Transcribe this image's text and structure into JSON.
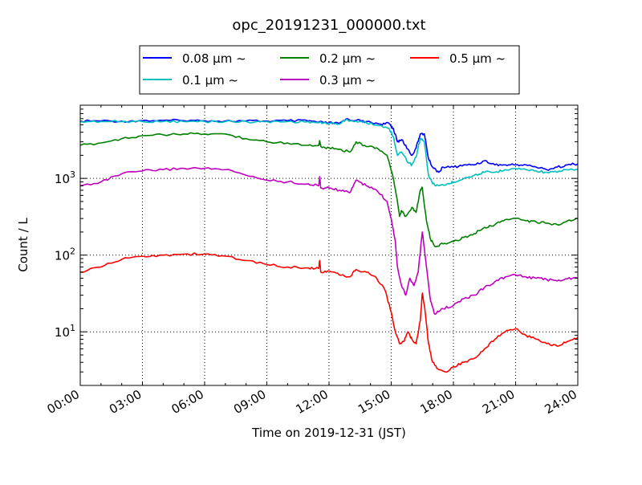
{
  "chart_data": {
    "type": "line",
    "title": "opc_20191231_000000.txt",
    "xlabel": "Time on 2019-12-31 (JST)",
    "ylabel": "Count / L",
    "yscale": "log",
    "xlim": [
      0,
      24
    ],
    "ylim": [
      2,
      9000
    ],
    "grid": true,
    "legend_position": "top-center",
    "x_ticks": [
      {
        "value": 0,
        "label": "00:00"
      },
      {
        "value": 3,
        "label": "03:00"
      },
      {
        "value": 6,
        "label": "06:00"
      },
      {
        "value": 9,
        "label": "09:00"
      },
      {
        "value": 12,
        "label": "12:00"
      },
      {
        "value": 15,
        "label": "15:00"
      },
      {
        "value": 18,
        "label": "18:00"
      },
      {
        "value": 21,
        "label": "21:00"
      },
      {
        "value": 24,
        "label": "24:00"
      }
    ],
    "y_ticks": [
      {
        "value": 10,
        "base": "10",
        "exp": "1"
      },
      {
        "value": 100,
        "base": "10",
        "exp": "2"
      },
      {
        "value": 1000,
        "base": "10",
        "exp": "3"
      }
    ],
    "series": [
      {
        "name": "0.08 μm ~",
        "color": "#0000ff",
        "points": [
          [
            0,
            5600
          ],
          [
            1,
            5600
          ],
          [
            2,
            5600
          ],
          [
            3,
            5650
          ],
          [
            4,
            5700
          ],
          [
            5,
            5650
          ],
          [
            6,
            5650
          ],
          [
            7,
            5600
          ],
          [
            8,
            5600
          ],
          [
            9,
            5600
          ],
          [
            10,
            5650
          ],
          [
            11,
            5600
          ],
          [
            11.5,
            5400
          ],
          [
            12,
            5300
          ],
          [
            12.5,
            5200
          ],
          [
            12.8,
            5900
          ],
          [
            13.3,
            5700
          ],
          [
            13.8,
            5500
          ],
          [
            14.5,
            5100
          ],
          [
            14.9,
            5200
          ],
          [
            15.1,
            4500
          ],
          [
            15.3,
            3000
          ],
          [
            15.5,
            3200
          ],
          [
            15.8,
            2400
          ],
          [
            16,
            2000
          ],
          [
            16.2,
            2500
          ],
          [
            16.4,
            3800
          ],
          [
            16.6,
            3800
          ],
          [
            16.8,
            1800
          ],
          [
            17,
            1400
          ],
          [
            17.3,
            1200
          ],
          [
            17.5,
            1400
          ],
          [
            18,
            1400
          ],
          [
            18.5,
            1500
          ],
          [
            19,
            1500
          ],
          [
            19.5,
            1700
          ],
          [
            20,
            1500
          ],
          [
            20.5,
            1500
          ],
          [
            21,
            1500
          ],
          [
            21.5,
            1500
          ],
          [
            22,
            1400
          ],
          [
            22.5,
            1300
          ],
          [
            23,
            1400
          ],
          [
            23.5,
            1500
          ],
          [
            24,
            1550
          ]
        ]
      },
      {
        "name": "0.1 μm ~",
        "color": "#00bfbf",
        "points": [
          [
            0,
            5500
          ],
          [
            1,
            5500
          ],
          [
            2,
            5500
          ],
          [
            3,
            5500
          ],
          [
            4,
            5500
          ],
          [
            5,
            5500
          ],
          [
            6,
            5500
          ],
          [
            7,
            5500
          ],
          [
            8,
            5500
          ],
          [
            9,
            5500
          ],
          [
            10,
            5500
          ],
          [
            11,
            5500
          ],
          [
            11.5,
            5300
          ],
          [
            12,
            5200
          ],
          [
            12.5,
            5100
          ],
          [
            12.8,
            5800
          ],
          [
            13.3,
            5600
          ],
          [
            13.8,
            5300
          ],
          [
            14.5,
            4900
          ],
          [
            14.9,
            4500
          ],
          [
            15.1,
            3500
          ],
          [
            15.3,
            2000
          ],
          [
            15.5,
            2200
          ],
          [
            15.8,
            1600
          ],
          [
            16,
            1500
          ],
          [
            16.2,
            1900
          ],
          [
            16.4,
            3300
          ],
          [
            16.6,
            3000
          ],
          [
            16.8,
            1100
          ],
          [
            17,
            850
          ],
          [
            17.3,
            800
          ],
          [
            17.8,
            850
          ],
          [
            18,
            900
          ],
          [
            18.5,
            1000
          ],
          [
            19,
            1100
          ],
          [
            19.5,
            1200
          ],
          [
            20,
            1200
          ],
          [
            20.5,
            1300
          ],
          [
            21,
            1350
          ],
          [
            21.5,
            1300
          ],
          [
            22,
            1250
          ],
          [
            22.5,
            1200
          ],
          [
            23,
            1200
          ],
          [
            23.5,
            1300
          ],
          [
            24,
            1300
          ]
        ]
      },
      {
        "name": "0.2 μm ~",
        "color": "#008000",
        "points": [
          [
            0,
            2700
          ],
          [
            1,
            2900
          ],
          [
            2,
            3300
          ],
          [
            3,
            3600
          ],
          [
            4,
            3700
          ],
          [
            5,
            3800
          ],
          [
            6,
            3800
          ],
          [
            7,
            3800
          ],
          [
            8,
            3300
          ],
          [
            9,
            3000
          ],
          [
            10,
            2900
          ],
          [
            11,
            2700
          ],
          [
            11.5,
            2700
          ],
          [
            11.55,
            3100
          ],
          [
            11.6,
            2600
          ],
          [
            12,
            2500
          ],
          [
            12.5,
            2400
          ],
          [
            13,
            2200
          ],
          [
            13.3,
            3000
          ],
          [
            13.8,
            2600
          ],
          [
            14.3,
            2500
          ],
          [
            14.8,
            2000
          ],
          [
            15.1,
            1000
          ],
          [
            15.3,
            500
          ],
          [
            15.4,
            320
          ],
          [
            15.5,
            380
          ],
          [
            15.7,
            320
          ],
          [
            16,
            420
          ],
          [
            16.2,
            360
          ],
          [
            16.4,
            700
          ],
          [
            16.5,
            760
          ],
          [
            16.7,
            280
          ],
          [
            16.9,
            160
          ],
          [
            17.1,
            130
          ],
          [
            17.5,
            140
          ],
          [
            18,
            150
          ],
          [
            18.5,
            170
          ],
          [
            19,
            190
          ],
          [
            19.5,
            230
          ],
          [
            20,
            250
          ],
          [
            20.5,
            290
          ],
          [
            21,
            300
          ],
          [
            21.5,
            280
          ],
          [
            22,
            270
          ],
          [
            22.5,
            260
          ],
          [
            23,
            250
          ],
          [
            23.5,
            280
          ],
          [
            24,
            300
          ]
        ]
      },
      {
        "name": "0.3 μm ~",
        "color": "#bf00bf",
        "points": [
          [
            0,
            800
          ],
          [
            1,
            900
          ],
          [
            2,
            1150
          ],
          [
            3,
            1250
          ],
          [
            4,
            1300
          ],
          [
            5,
            1350
          ],
          [
            6,
            1350
          ],
          [
            7,
            1300
          ],
          [
            8,
            1100
          ],
          [
            9,
            950
          ],
          [
            10,
            900
          ],
          [
            11,
            850
          ],
          [
            11.5,
            800
          ],
          [
            11.55,
            1050
          ],
          [
            11.6,
            750
          ],
          [
            12,
            750
          ],
          [
            12.5,
            700
          ],
          [
            13,
            650
          ],
          [
            13.3,
            950
          ],
          [
            13.8,
            800
          ],
          [
            14.3,
            700
          ],
          [
            14.8,
            500
          ],
          [
            15,
            300
          ],
          [
            15.2,
            150
          ],
          [
            15.3,
            70
          ],
          [
            15.5,
            40
          ],
          [
            15.7,
            30
          ],
          [
            15.9,
            50
          ],
          [
            16.1,
            40
          ],
          [
            16.3,
            60
          ],
          [
            16.5,
            200
          ],
          [
            16.7,
            70
          ],
          [
            16.9,
            25
          ],
          [
            17.1,
            17
          ],
          [
            17.5,
            20
          ],
          [
            18,
            22
          ],
          [
            18.5,
            27
          ],
          [
            19,
            30
          ],
          [
            19.5,
            38
          ],
          [
            20,
            45
          ],
          [
            20.5,
            52
          ],
          [
            21,
            55
          ],
          [
            21.5,
            52
          ],
          [
            22,
            50
          ],
          [
            22.5,
            48
          ],
          [
            23,
            46
          ],
          [
            23.5,
            49
          ],
          [
            24,
            50
          ]
        ]
      },
      {
        "name": "0.5 μm ~",
        "color": "#ff0000",
        "points": [
          [
            0,
            60
          ],
          [
            1,
            70
          ],
          [
            2,
            88
          ],
          [
            3,
            97
          ],
          [
            4,
            100
          ],
          [
            5,
            103
          ],
          [
            6,
            103
          ],
          [
            7,
            97
          ],
          [
            8,
            85
          ],
          [
            9,
            75
          ],
          [
            10,
            70
          ],
          [
            11,
            68
          ],
          [
            11.5,
            67
          ],
          [
            11.55,
            85
          ],
          [
            11.6,
            60
          ],
          [
            12,
            62
          ],
          [
            12.5,
            55
          ],
          [
            13,
            52
          ],
          [
            13.3,
            65
          ],
          [
            13.8,
            60
          ],
          [
            14.3,
            50
          ],
          [
            14.7,
            35
          ],
          [
            15,
            18
          ],
          [
            15.2,
            10
          ],
          [
            15.4,
            7
          ],
          [
            15.6,
            7.5
          ],
          [
            15.8,
            10
          ],
          [
            16,
            8
          ],
          [
            16.2,
            7
          ],
          [
            16.4,
            14
          ],
          [
            16.5,
            32
          ],
          [
            16.6,
            22
          ],
          [
            16.8,
            7
          ],
          [
            17,
            4
          ],
          [
            17.3,
            3.2
          ],
          [
            17.7,
            3
          ],
          [
            18,
            3.5
          ],
          [
            18.5,
            4
          ],
          [
            19,
            4.5
          ],
          [
            19.5,
            6
          ],
          [
            20,
            8
          ],
          [
            20.5,
            10
          ],
          [
            21,
            11
          ],
          [
            21.5,
            9
          ],
          [
            22,
            8
          ],
          [
            22.5,
            7
          ],
          [
            23,
            6.5
          ],
          [
            23.5,
            7.5
          ],
          [
            24,
            8.5
          ]
        ]
      }
    ]
  }
}
